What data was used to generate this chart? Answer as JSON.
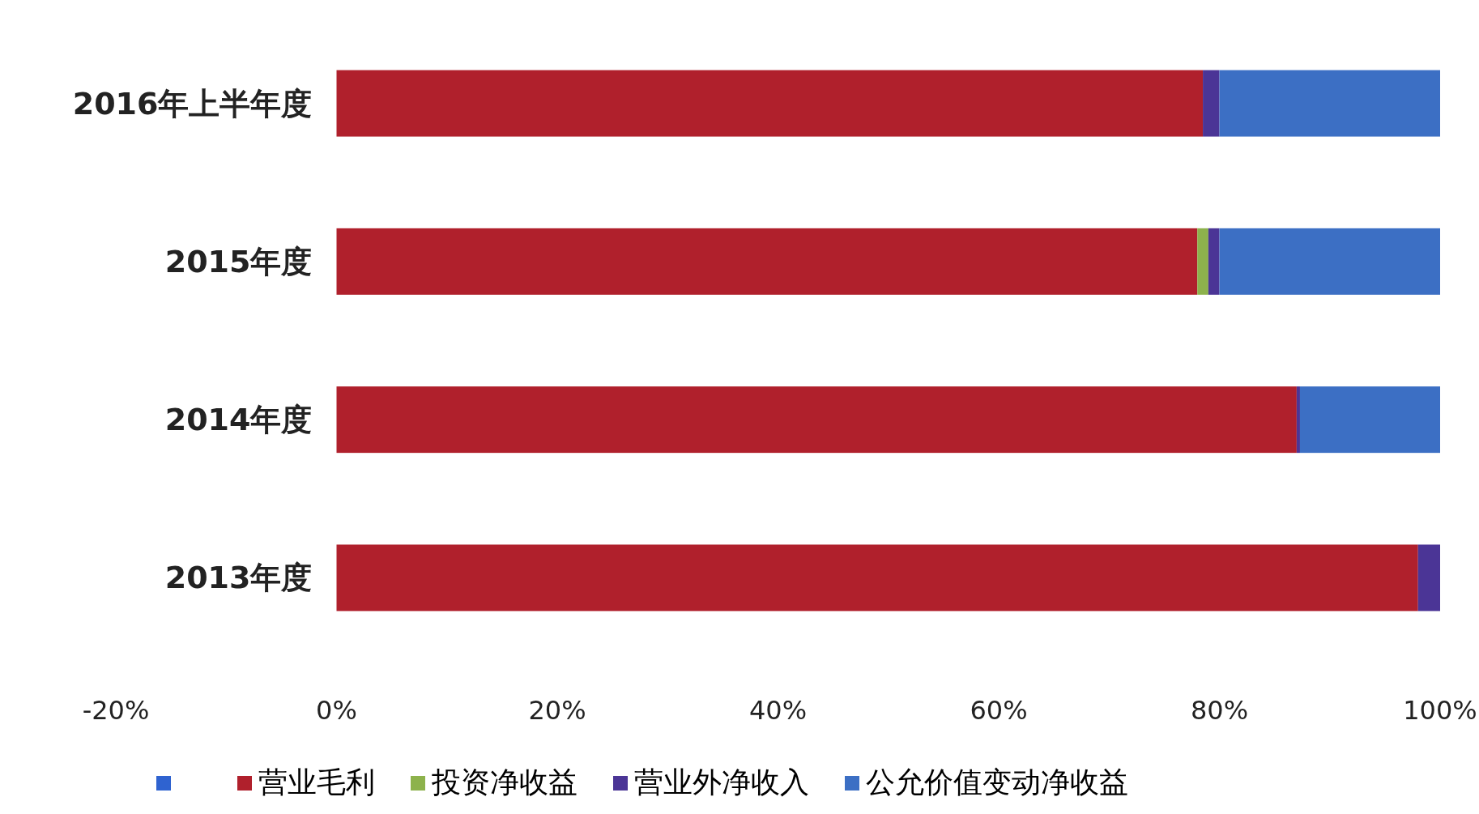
{
  "chart_data": {
    "type": "bar",
    "orientation": "horizontal",
    "stacked": true,
    "categories": [
      "2016年上半年度",
      "2015年度",
      "2014年度",
      "2013年度"
    ],
    "series": [
      {
        "color": "#2f63d0",
        "values": [
          null,
          null,
          null,
          null
        ]
      },
      {
        "name": "营业毛利",
        "color": "#b0202c",
        "values": [
          78.5,
          78,
          87,
          98
        ]
      },
      {
        "name": "投资净收益",
        "color": "#8db24c",
        "values": [
          0,
          1,
          0,
          0
        ]
      },
      {
        "name": "营业外净收入",
        "color": "#4b3596",
        "values": [
          1.5,
          1,
          0.3,
          2
        ]
      },
      {
        "name": "公允价值变动净收益",
        "color": "#3c6fc4",
        "values": [
          20,
          20,
          12.7,
          0
        ]
      }
    ],
    "xlim": [
      -20,
      100
    ],
    "xticks": [
      {
        "value": -20,
        "label": "-20%"
      },
      {
        "value": 0,
        "label": "0%"
      },
      {
        "value": 20,
        "label": "20%"
      },
      {
        "value": 40,
        "label": "40%"
      },
      {
        "value": 60,
        "label": "60%"
      },
      {
        "value": 80,
        "label": "80%"
      },
      {
        "value": 100,
        "label": "100%"
      }
    ],
    "legend": "bottom"
  }
}
